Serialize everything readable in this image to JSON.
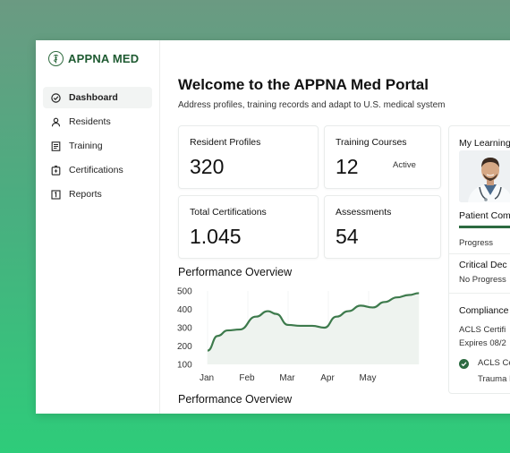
{
  "brand": {
    "name": "APPNA MED"
  },
  "sidebar": {
    "items": [
      {
        "label": "Dashboard",
        "icon": "dashboard-check-icon",
        "active": true
      },
      {
        "label": "Residents",
        "icon": "person-icon",
        "active": false
      },
      {
        "label": "Training",
        "icon": "document-icon",
        "active": false
      },
      {
        "label": "Certifications",
        "icon": "certificate-icon",
        "active": false
      },
      {
        "label": "Reports",
        "icon": "report-icon",
        "active": false
      }
    ]
  },
  "header": {
    "title": "Welcome to the APPNA Med Portal",
    "subtitle": "Address profiles, training records and adapt to U.S. medical  system"
  },
  "stats": {
    "resident_profiles": {
      "label": "Resident Profiles",
      "value": "320"
    },
    "training_courses": {
      "label": "Training Courses",
      "value": "12",
      "badge": "Active"
    },
    "total_certifications": {
      "label": "Total Certifications",
      "value": "1.045"
    },
    "assessments": {
      "label": "Assessments",
      "value": "54"
    }
  },
  "performance": {
    "title": "Performance Overview",
    "title_2": "Performance Overview"
  },
  "chart_data": {
    "type": "area",
    "x_tick_labels": [
      "Jan",
      "Feb",
      "Mar",
      "Apr",
      "May"
    ],
    "y_tick_labels": [
      "500",
      "400",
      "300",
      "200",
      "100"
    ],
    "ylim": [
      100,
      500
    ],
    "series": [
      {
        "values": [
          {
            "x": 0.0,
            "y": 175
          },
          {
            "x": 0.25,
            "y": 255
          },
          {
            "x": 0.5,
            "y": 285
          },
          {
            "x": 0.8,
            "y": 290
          },
          {
            "x": 1.2,
            "y": 360
          },
          {
            "x": 1.5,
            "y": 390
          },
          {
            "x": 1.7,
            "y": 375
          },
          {
            "x": 2.0,
            "y": 315
          },
          {
            "x": 2.3,
            "y": 310
          },
          {
            "x": 2.6,
            "y": 310
          },
          {
            "x": 2.9,
            "y": 300
          },
          {
            "x": 3.2,
            "y": 360
          },
          {
            "x": 3.5,
            "y": 390
          },
          {
            "x": 3.8,
            "y": 420
          },
          {
            "x": 4.1,
            "y": 410
          },
          {
            "x": 4.4,
            "y": 440
          },
          {
            "x": 4.7,
            "y": 465
          },
          {
            "x": 5.0,
            "y": 478
          },
          {
            "x": 5.25,
            "y": 488
          }
        ]
      }
    ],
    "grid": true,
    "line_color": "#3d7a4c",
    "fill_color": "#eef3ef"
  },
  "right_panel": {
    "title": "My Learning",
    "course_title": "Patient Com",
    "course_progress": 0.55,
    "progress_label": "Progress",
    "critical_title": "Critical Dec",
    "critical_status": "No Progress",
    "compliance_title": "Compliance",
    "acls_cert": "ACLS Certifi",
    "expires": "Expires 08/2",
    "acls_item": "ACLS Ce",
    "trauma_item": "Trauma I"
  },
  "colors": {
    "accent": "#2c6a40",
    "brand": "#1e5a31"
  }
}
